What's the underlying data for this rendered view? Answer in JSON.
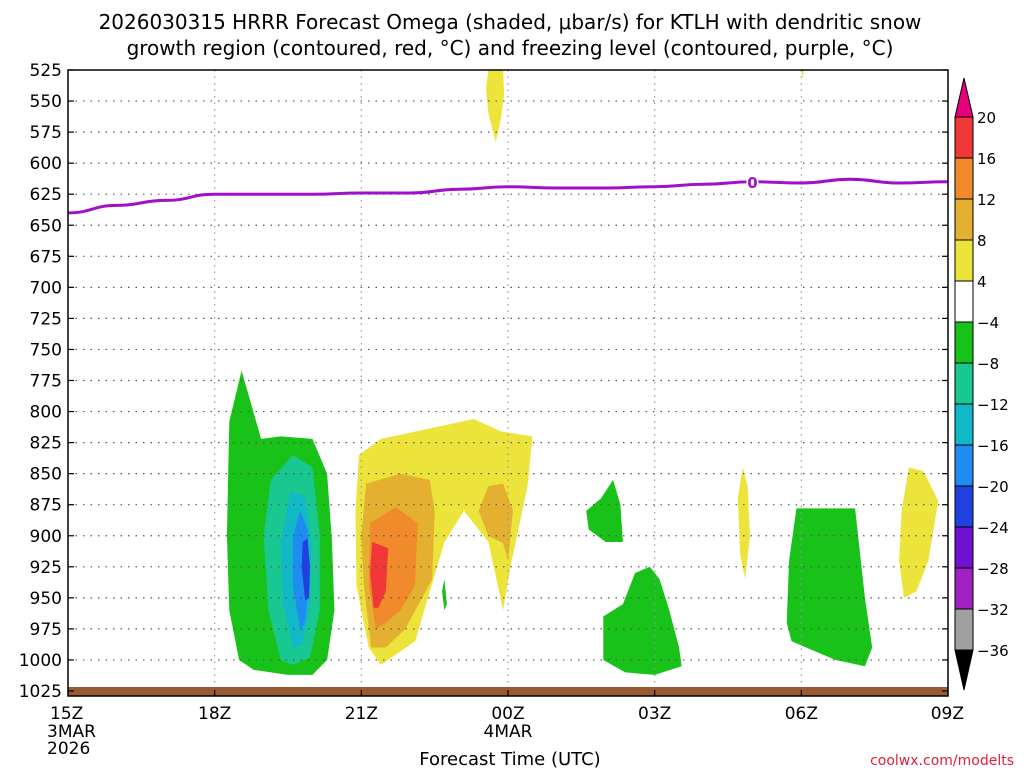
{
  "chart_data": {
    "type": "heatmap",
    "title_line1": "2026030315 HRRR Forecast Omega (shaded, μbar/s) for KTLH with dendritic snow",
    "title_line2": "growth region (contoured, red, °C) and freezing level (contoured, purple, °C)",
    "xlabel": "Forecast Time (UTC)",
    "credit": "coolwx.com/modelts",
    "x_range_hours": [
      0,
      18
    ],
    "x_ticks": [
      {
        "hour": 0,
        "label": "15Z",
        "sub1": "3MAR",
        "sub2": "2026"
      },
      {
        "hour": 3,
        "label": "18Z",
        "sub1": "",
        "sub2": ""
      },
      {
        "hour": 6,
        "label": "21Z",
        "sub1": "",
        "sub2": ""
      },
      {
        "hour": 9,
        "label": "00Z",
        "sub1": "4MAR",
        "sub2": ""
      },
      {
        "hour": 12,
        "label": "03Z",
        "sub1": "",
        "sub2": ""
      },
      {
        "hour": 15,
        "label": "06Z",
        "sub1": "",
        "sub2": ""
      },
      {
        "hour": 18,
        "label": "09Z",
        "sub1": "",
        "sub2": ""
      }
    ],
    "y_ticks": [
      "525",
      "550",
      "575",
      "600",
      "625",
      "650",
      "675",
      "700",
      "725",
      "750",
      "775",
      "800",
      "825",
      "850",
      "875",
      "900",
      "925",
      "950",
      "975",
      "1000",
      "1025"
    ],
    "y_range_hpa": [
      525,
      1030
    ],
    "colorbar": {
      "labels": [
        "20",
        "16",
        "12",
        "8",
        "4",
        "−4",
        "−8",
        "−12",
        "−16",
        "−20",
        "−24",
        "−28",
        "−32",
        "−36"
      ],
      "colors": [
        "#e6007a",
        "#f03838",
        "#f08a2a",
        "#e4b030",
        "#ece43a",
        "#ffffff",
        "#18c218",
        "#18c890",
        "#10b8c8",
        "#1e8cf0",
        "#2040e0",
        "#7010d0",
        "#a020c0",
        "#a0a0a0",
        "#000000"
      ]
    },
    "freezing_level": {
      "label": "0",
      "points": [
        [
          0,
          640
        ],
        [
          1,
          634
        ],
        [
          2,
          630
        ],
        [
          3,
          625
        ],
        [
          4,
          625
        ],
        [
          5,
          625
        ],
        [
          6,
          624
        ],
        [
          7,
          624
        ],
        [
          8,
          621
        ],
        [
          9,
          619
        ],
        [
          10,
          620
        ],
        [
          11,
          620
        ],
        [
          12,
          619
        ],
        [
          13,
          617
        ],
        [
          14,
          615
        ],
        [
          15,
          616
        ],
        [
          16,
          613
        ],
        [
          17,
          616
        ],
        [
          18,
          615
        ]
      ]
    },
    "omega_regions": [
      {
        "color": "#18c218",
        "points": [
          [
            3.5,
            1000
          ],
          [
            3.3,
            960
          ],
          [
            3.25,
            900
          ],
          [
            3.3,
            808
          ],
          [
            3.55,
            767
          ],
          [
            3.95,
            822
          ],
          [
            4.35,
            820
          ],
          [
            5.0,
            822
          ],
          [
            5.3,
            850
          ],
          [
            5.4,
            905
          ],
          [
            5.45,
            960
          ],
          [
            5.3,
            1000
          ],
          [
            5.0,
            1012
          ],
          [
            4.5,
            1012
          ],
          [
            3.8,
            1008
          ]
        ]
      },
      {
        "color": "#18c890",
        "points": [
          [
            4.35,
            1000
          ],
          [
            4.1,
            960
          ],
          [
            4.0,
            900
          ],
          [
            4.15,
            855
          ],
          [
            4.6,
            835
          ],
          [
            5.0,
            845
          ],
          [
            5.15,
            900
          ],
          [
            5.15,
            960
          ],
          [
            4.95,
            998
          ],
          [
            4.6,
            1004
          ]
        ]
      },
      {
        "color": "#10b8c8",
        "points": [
          [
            4.6,
            990
          ],
          [
            4.4,
            955
          ],
          [
            4.35,
            905
          ],
          [
            4.55,
            865
          ],
          [
            4.85,
            868
          ],
          [
            4.98,
            905
          ],
          [
            4.95,
            955
          ],
          [
            4.8,
            988
          ]
        ]
      },
      {
        "color": "#1e8cf0",
        "points": [
          [
            4.75,
            975
          ],
          [
            4.6,
            940
          ],
          [
            4.6,
            900
          ],
          [
            4.75,
            880
          ],
          [
            4.9,
            895
          ],
          [
            4.92,
            940
          ],
          [
            4.85,
            970
          ]
        ]
      },
      {
        "color": "#2040e0",
        "points": [
          [
            4.85,
            952
          ],
          [
            4.78,
            925
          ],
          [
            4.8,
            905
          ],
          [
            4.9,
            902
          ],
          [
            4.95,
            925
          ],
          [
            4.93,
            950
          ]
        ]
      },
      {
        "color": "#ece43a",
        "points": [
          [
            6.15,
            990
          ],
          [
            5.9,
            940
          ],
          [
            5.88,
            880
          ],
          [
            5.95,
            835
          ],
          [
            6.4,
            822
          ],
          [
            8.3,
            806
          ],
          [
            8.85,
            816
          ],
          [
            9.5,
            820
          ],
          [
            9.4,
            860
          ],
          [
            9.05,
            925
          ],
          [
            8.9,
            960
          ],
          [
            8.6,
            905
          ],
          [
            8.1,
            880
          ],
          [
            7.7,
            905
          ],
          [
            7.1,
            985
          ],
          [
            6.4,
            1004
          ]
        ]
      },
      {
        "color": "#e4b030",
        "points": [
          [
            6.2,
            990
          ],
          [
            6.05,
            940
          ],
          [
            6.0,
            900
          ],
          [
            6.1,
            858
          ],
          [
            6.8,
            850
          ],
          [
            7.4,
            855
          ],
          [
            7.5,
            880
          ],
          [
            7.45,
            935
          ],
          [
            6.9,
            975
          ],
          [
            6.5,
            990
          ]
        ]
      },
      {
        "color": "#f08a2a",
        "points": [
          [
            6.3,
            975
          ],
          [
            6.15,
            940
          ],
          [
            6.18,
            890
          ],
          [
            6.7,
            877
          ],
          [
            7.15,
            890
          ],
          [
            7.1,
            940
          ],
          [
            6.8,
            960
          ],
          [
            6.5,
            970
          ]
        ]
      },
      {
        "color": "#f03838",
        "points": [
          [
            6.25,
            958
          ],
          [
            6.18,
            930
          ],
          [
            6.22,
            905
          ],
          [
            6.55,
            910
          ],
          [
            6.5,
            945
          ],
          [
            6.35,
            958
          ]
        ]
      },
      {
        "color": "#e4b030",
        "points": [
          [
            8.4,
            880
          ],
          [
            8.6,
            860
          ],
          [
            8.9,
            858
          ],
          [
            9.1,
            880
          ],
          [
            9.0,
            920
          ],
          [
            8.9,
            906
          ],
          [
            8.6,
            900
          ]
        ]
      },
      {
        "color": "#ece43a",
        "points": [
          [
            8.6,
            525
          ],
          [
            8.9,
            525
          ],
          [
            8.92,
            545
          ],
          [
            8.85,
            565
          ],
          [
            8.75,
            583
          ],
          [
            8.6,
            560
          ],
          [
            8.55,
            540
          ]
        ]
      },
      {
        "color": "#18c218",
        "points": [
          [
            7.7,
            960
          ],
          [
            7.65,
            945
          ],
          [
            7.7,
            935
          ],
          [
            7.75,
            955
          ]
        ]
      },
      {
        "color": "#18c218",
        "points": [
          [
            10.65,
            895
          ],
          [
            10.6,
            880
          ],
          [
            10.9,
            870
          ],
          [
            11.15,
            855
          ],
          [
            11.3,
            875
          ],
          [
            11.35,
            905
          ],
          [
            11.0,
            905
          ]
        ]
      },
      {
        "color": "#18c218",
        "points": [
          [
            10.95,
            1000
          ],
          [
            10.95,
            965
          ],
          [
            11.35,
            955
          ],
          [
            11.6,
            930
          ],
          [
            11.9,
            925
          ],
          [
            12.1,
            935
          ],
          [
            12.3,
            960
          ],
          [
            12.5,
            990
          ],
          [
            12.55,
            1005
          ],
          [
            12.0,
            1012
          ],
          [
            11.4,
            1010
          ]
        ]
      },
      {
        "color": "#ece43a",
        "points": [
          [
            13.7,
            870
          ],
          [
            13.8,
            845
          ],
          [
            13.9,
            860
          ],
          [
            13.95,
            900
          ],
          [
            13.85,
            935
          ],
          [
            13.75,
            915
          ]
        ]
      },
      {
        "color": "#18c218",
        "points": [
          [
            14.7,
            970
          ],
          [
            14.75,
            920
          ],
          [
            14.9,
            878
          ],
          [
            15.5,
            878
          ],
          [
            16.1,
            878
          ],
          [
            16.3,
            950
          ],
          [
            16.45,
            990
          ],
          [
            16.3,
            1005
          ],
          [
            15.7,
            1000
          ],
          [
            15.1,
            990
          ],
          [
            14.8,
            985
          ]
        ]
      },
      {
        "color": "#ece43a",
        "points": [
          [
            17.0,
            920
          ],
          [
            17.05,
            880
          ],
          [
            17.2,
            845
          ],
          [
            17.5,
            848
          ],
          [
            17.8,
            872
          ],
          [
            17.6,
            920
          ],
          [
            17.35,
            945
          ],
          [
            17.1,
            950
          ]
        ]
      },
      {
        "color": "#ece43a",
        "points": [
          [
            15.0,
            525
          ],
          [
            15.05,
            525
          ],
          [
            15.03,
            532
          ]
        ]
      }
    ]
  }
}
